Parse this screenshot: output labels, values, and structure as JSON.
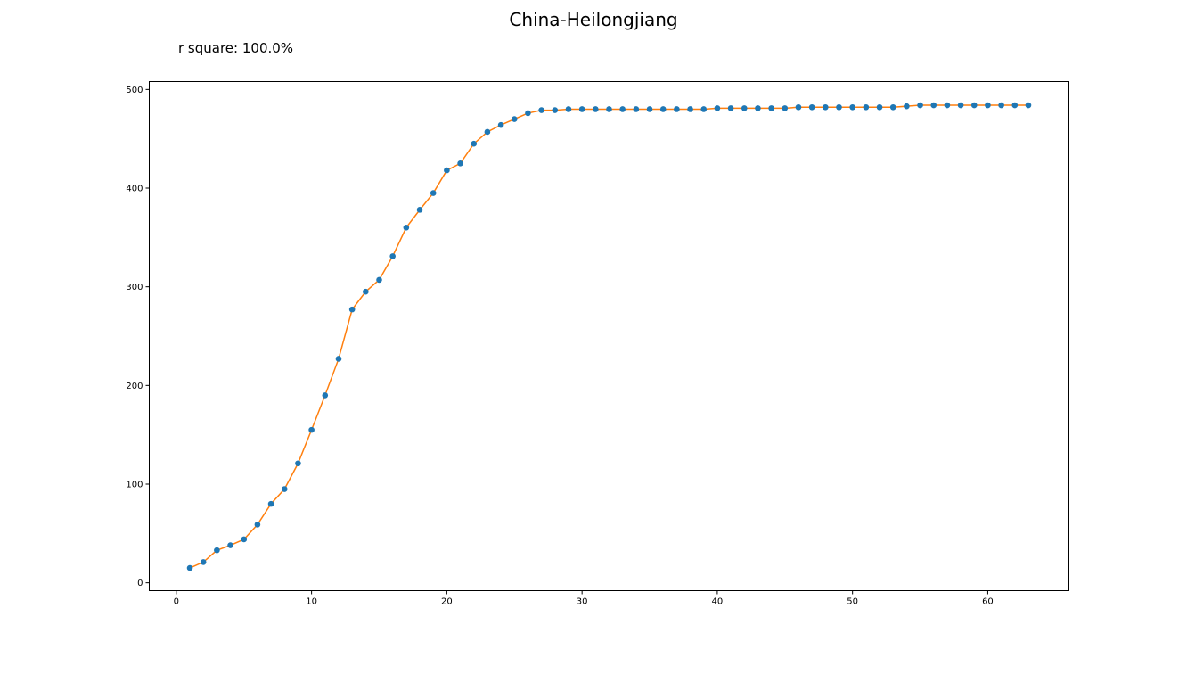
{
  "chart_data": {
    "type": "line",
    "title": "China-Heilongjiang",
    "subtitle": "r square: 100.0%",
    "xlabel": "",
    "ylabel": "",
    "xlim": [
      -2,
      66
    ],
    "ylim": [
      -8,
      508
    ],
    "xticks": [
      0,
      10,
      20,
      30,
      40,
      50,
      60
    ],
    "yticks": [
      0,
      100,
      200,
      300,
      400,
      500
    ],
    "grid": false,
    "colors": {
      "points": "#1f77b4",
      "line": "#ff7f0e"
    },
    "series": [
      {
        "style": "scatter",
        "x": [
          1,
          2,
          3,
          4,
          5,
          6,
          7,
          8,
          9,
          10,
          11,
          12,
          13,
          14,
          15,
          16,
          17,
          18,
          19,
          20,
          21,
          22,
          23,
          24,
          25,
          26,
          27,
          28,
          29,
          30,
          31,
          32,
          33,
          34,
          35,
          36,
          37,
          38,
          39,
          40,
          41,
          42,
          43,
          44,
          45,
          46,
          47,
          48,
          49,
          50,
          51,
          52,
          53,
          54,
          55,
          56,
          57,
          58,
          59,
          60,
          61,
          62,
          63
        ],
        "y": [
          15,
          21,
          33,
          38,
          44,
          59,
          80,
          95,
          121,
          155,
          190,
          227,
          277,
          295,
          307,
          331,
          360,
          378,
          395,
          418,
          425,
          445,
          457,
          464,
          470,
          476,
          479,
          479,
          480,
          480,
          480,
          480,
          480,
          480,
          480,
          480,
          480,
          480,
          480,
          481,
          481,
          481,
          481,
          481,
          481,
          482,
          482,
          482,
          482,
          482,
          482,
          482,
          482,
          483,
          484,
          484,
          484,
          484,
          484,
          484,
          484,
          484,
          484
        ]
      },
      {
        "style": "line",
        "x": [
          1,
          2,
          3,
          4,
          5,
          6,
          7,
          8,
          9,
          10,
          11,
          12,
          13,
          14,
          15,
          16,
          17,
          18,
          19,
          20,
          21,
          22,
          23,
          24,
          25,
          26,
          27,
          28,
          29,
          30,
          31,
          32,
          33,
          34,
          35,
          36,
          37,
          38,
          39,
          40,
          41,
          42,
          43,
          44,
          45,
          46,
          47,
          48,
          49,
          50,
          51,
          52,
          53,
          54,
          55,
          56,
          57,
          58,
          59,
          60,
          61,
          62,
          63
        ],
        "y": [
          15,
          21,
          33,
          38,
          44,
          59,
          80,
          95,
          121,
          155,
          190,
          227,
          277,
          295,
          307,
          331,
          360,
          378,
          395,
          418,
          425,
          445,
          457,
          464,
          470,
          476,
          479,
          479,
          480,
          480,
          480,
          480,
          480,
          480,
          480,
          480,
          480,
          480,
          480,
          481,
          481,
          481,
          481,
          481,
          481,
          482,
          482,
          482,
          482,
          482,
          482,
          482,
          482,
          483,
          484,
          484,
          484,
          484,
          484,
          484,
          484,
          484,
          484
        ]
      }
    ]
  }
}
